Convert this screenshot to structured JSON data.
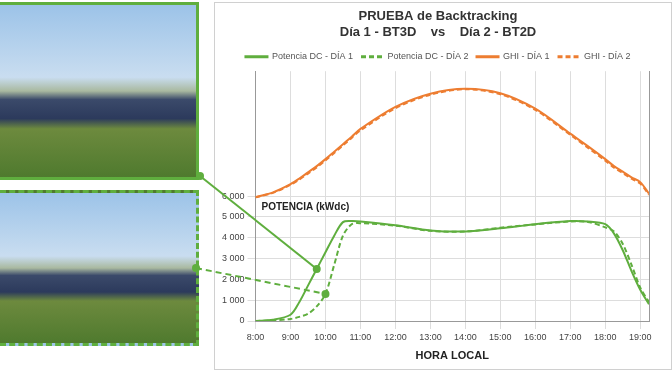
{
  "chart_data": {
    "type": "line",
    "title": [
      "PRUEBA de Backtracking",
      "Día 1 - BT3D    vs    Día 2 - BT2D"
    ],
    "x_label": "HORA LOCAL",
    "y_label": "POTENCIA (kWdc)",
    "x": [
      8,
      8.5,
      9,
      9.25,
      9.5,
      9.75,
      10,
      10.25,
      10.5,
      10.75,
      11,
      12,
      13,
      14,
      15,
      16,
      17,
      17.5,
      18,
      18.25,
      18.5,
      18.75,
      19,
      19.25
    ],
    "series": [
      {
        "name": "Potencia DC - DÍA 1",
        "color": "#5fae3e",
        "line_style": "solid",
        "values": [
          0,
          60,
          300,
          900,
          1700,
          2500,
          3300,
          4100,
          4750,
          4800,
          4780,
          4600,
          4350,
          4300,
          4450,
          4650,
          4800,
          4780,
          4650,
          4200,
          3400,
          2400,
          1500,
          800
        ]
      },
      {
        "name": "Potencia DC - DÍA 2",
        "color": "#5fae3e",
        "line_style": "dashed",
        "values": [
          0,
          30,
          100,
          200,
          350,
          700,
          1300,
          2700,
          4100,
          4650,
          4700,
          4580,
          4330,
          4300,
          4480,
          4640,
          4780,
          4760,
          4500,
          4300,
          3700,
          2700,
          1600,
          900
        ]
      },
      {
        "name": "GHI - DÍA 1",
        "color": "#ed7d31",
        "line_style": "solid",
        "axis": "y2",
        "values": [
          496,
          515,
          548,
          570,
          595,
          620,
          648,
          678,
          708,
          738,
          769,
          857,
          910,
          930,
          912,
          850,
          750,
          700,
          648,
          620,
          598,
          575,
          556,
          510
        ]
      },
      {
        "name": "GHI - DÍA 2",
        "color": "#ed7d31",
        "line_style": "dashed",
        "axis": "y2",
        "values": [
          495,
          513,
          545,
          566,
          590,
          615,
          643,
          673,
          703,
          733,
          763,
          852,
          906,
          928,
          908,
          845,
          745,
          694,
          642,
          614,
          592,
          570,
          550,
          505
        ]
      }
    ],
    "xlim": [
      8,
      19.25
    ],
    "xticks": [
      {
        "value": 8,
        "label": "8:00"
      },
      {
        "value": 9,
        "label": "9:00"
      },
      {
        "value": 10,
        "label": "10:00"
      },
      {
        "value": 11,
        "label": "11:00"
      },
      {
        "value": 12,
        "label": "12:00"
      },
      {
        "value": 13,
        "label": "13:00"
      },
      {
        "value": 14,
        "label": "14:00"
      },
      {
        "value": 15,
        "label": "15:00"
      },
      {
        "value": 16,
        "label": "16:00"
      },
      {
        "value": 17,
        "label": "17:00"
      },
      {
        "value": 18,
        "label": "18:00"
      },
      {
        "value": 19,
        "label": "19:00"
      }
    ],
    "ylim": [
      0,
      12000
    ],
    "yticks": [
      0,
      {
        "value": 1000,
        "label": "1 000"
      },
      {
        "value": 2000,
        "label": "2 000"
      },
      {
        "value": 3000,
        "label": "3 000"
      },
      {
        "value": 4000,
        "label": "4 000"
      },
      {
        "value": 5000,
        "label": "5 000"
      },
      {
        "value": 6000,
        "label": "6 000"
      }
    ],
    "y2lim": [
      0,
      1000
    ],
    "grid": true,
    "legend": "top"
  }
}
